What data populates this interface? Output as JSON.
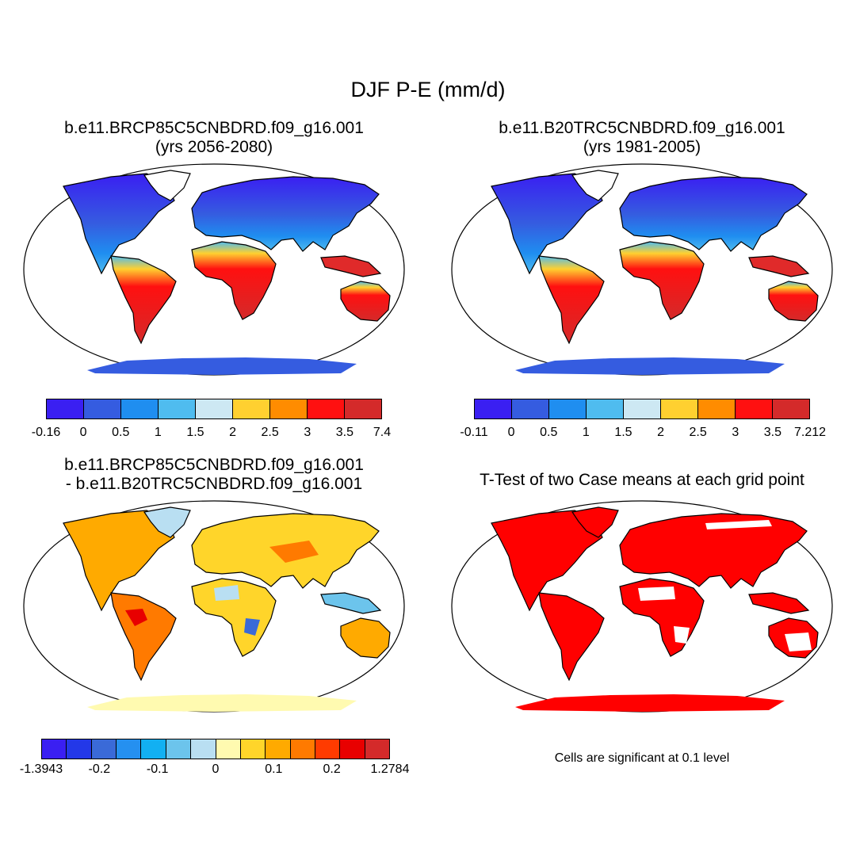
{
  "title": "DJF P-E (mm/d)",
  "panels": [
    {
      "title_line1": "b.e11.BRCP85C5CNBDRD.f09_g16.001",
      "title_line2": "(yrs 2056-2080)",
      "map_type": "climatology",
      "colorbar": {
        "colors": [
          "#3a1ff2",
          "#355ce0",
          "#1f8ef0",
          "#4fbcef",
          "#cde8f3",
          "#ffd030",
          "#ff8c00",
          "#ff1010",
          "#d42a2a"
        ],
        "labels": [
          "-0.16",
          "0",
          "0.5",
          "1",
          "1.5",
          "2",
          "2.5",
          "3",
          "3.5",
          "7.4"
        ]
      }
    },
    {
      "title_line1": "b.e11.B20TRC5CNBDRD.f09_g16.001",
      "title_line2": "(yrs 1981-2005)",
      "map_type": "climatology",
      "colorbar": {
        "colors": [
          "#3a1ff2",
          "#355ce0",
          "#1f8ef0",
          "#4fbcef",
          "#cde8f3",
          "#ffd030",
          "#ff8c00",
          "#ff1010",
          "#d42a2a"
        ],
        "labels": [
          "-0.11",
          "0",
          "0.5",
          "1",
          "1.5",
          "2",
          "2.5",
          "3",
          "3.5",
          "7.212"
        ]
      }
    },
    {
      "title_line1": "b.e11.BRCP85C5CNBDRD.f09_g16.001",
      "title_line2": "- b.e11.B20TRC5CNBDRD.f09_g16.001",
      "map_type": "difference",
      "colorbar": {
        "colors": [
          "#3a1ff2",
          "#2338e8",
          "#3a6ad8",
          "#2590f0",
          "#12b0f2",
          "#6cc4ec",
          "#b9dff2",
          "#fffab0",
          "#ffd52a",
          "#ffaa00",
          "#ff7a00",
          "#ff3b00",
          "#e80000",
          "#d42a2a"
        ],
        "labels": [
          "-1.3943",
          "-0.2",
          "-0.1",
          "0",
          "0.1",
          "0.2",
          "1.2784"
        ]
      }
    },
    {
      "title_line1": "T-Test of two Case means at each grid point",
      "title_line2": "",
      "map_type": "significance",
      "note": "Cells are significant at 0.1 level",
      "significant_color": "#ff0000"
    }
  ]
}
